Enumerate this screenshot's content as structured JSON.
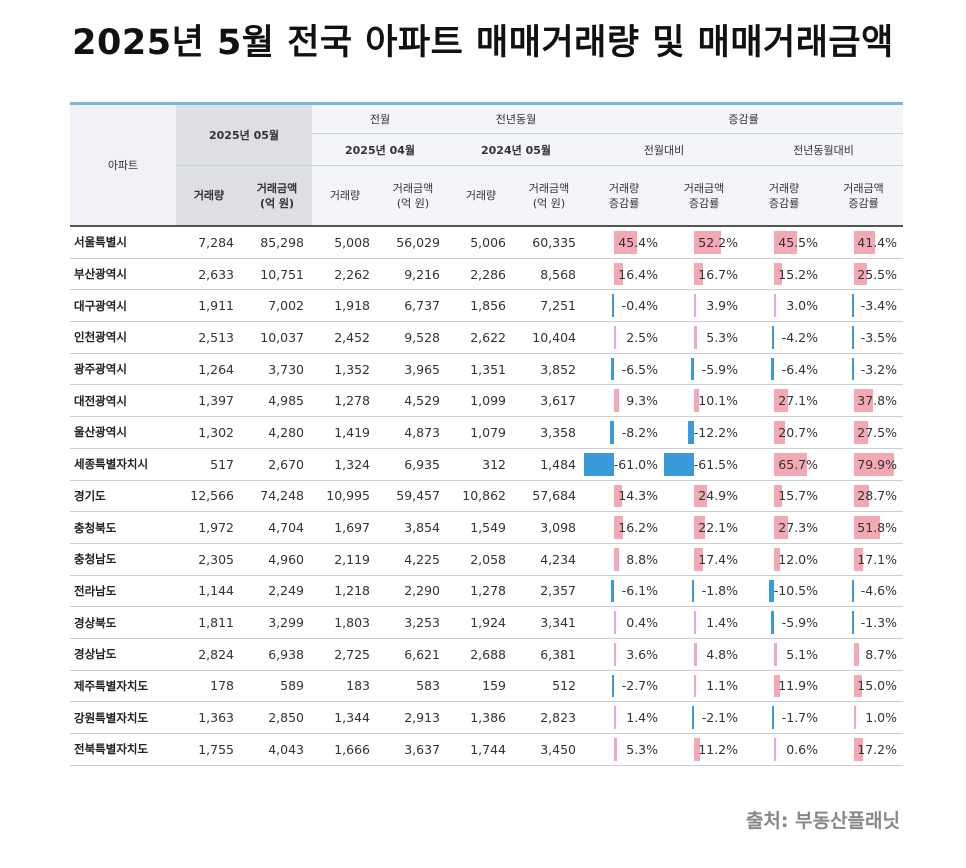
{
  "title": "2025년 5월 전국 아파트 매매거래량 및 매매거래금액",
  "header": {
    "apartment": "아파트",
    "current_month": "2025년 05월",
    "prev_month": "전월",
    "prev_year_same_month": "전년동월",
    "change_rate": "증감률",
    "prev_month_period": "2025년 04월",
    "prev_year_period": "2024년 05월",
    "vs_prev_month": "전월대비",
    "vs_prev_year": "전년동월대비",
    "volume": "거래량",
    "amount_line1": "거래금액",
    "amount_line2": "(억 원)",
    "volume_change_line1": "거래량",
    "volume_change_line2": "증감률",
    "amount_change_line1": "거래금액",
    "amount_change_line2": "증감률"
  },
  "rows": [
    {
      "region": "서울특별시",
      "vol": "7,284",
      "amt": "85,298",
      "pvol": "5,008",
      "pamt": "56,029",
      "yvol": "5,006",
      "yamt": "60,335",
      "mv": 45.4,
      "ma": 52.2,
      "yv": 45.5,
      "ya": 41.4
    },
    {
      "region": "부산광역시",
      "vol": "2,633",
      "amt": "10,751",
      "pvol": "2,262",
      "pamt": "9,216",
      "yvol": "2,286",
      "yamt": "8,568",
      "mv": 16.4,
      "ma": 16.7,
      "yv": 15.2,
      "ya": 25.5
    },
    {
      "region": "대구광역시",
      "vol": "1,911",
      "amt": "7,002",
      "pvol": "1,918",
      "pamt": "6,737",
      "yvol": "1,856",
      "yamt": "7,251",
      "mv": -0.4,
      "ma": 3.9,
      "yv": 3.0,
      "ya": -3.4
    },
    {
      "region": "인천광역시",
      "vol": "2,513",
      "amt": "10,037",
      "pvol": "2,452",
      "pamt": "9,528",
      "yvol": "2,622",
      "yamt": "10,404",
      "mv": 2.5,
      "ma": 5.3,
      "yv": -4.2,
      "ya": -3.5
    },
    {
      "region": "광주광역시",
      "vol": "1,264",
      "amt": "3,730",
      "pvol": "1,352",
      "pamt": "3,965",
      "yvol": "1,351",
      "yamt": "3,852",
      "mv": -6.5,
      "ma": -5.9,
      "yv": -6.4,
      "ya": -3.2
    },
    {
      "region": "대전광역시",
      "vol": "1,397",
      "amt": "4,985",
      "pvol": "1,278",
      "pamt": "4,529",
      "yvol": "1,099",
      "yamt": "3,617",
      "mv": 9.3,
      "ma": 10.1,
      "yv": 27.1,
      "ya": 37.8
    },
    {
      "region": "울산광역시",
      "vol": "1,302",
      "amt": "4,280",
      "pvol": "1,419",
      "pamt": "4,873",
      "yvol": "1,079",
      "yamt": "3,358",
      "mv": -8.2,
      "ma": -12.2,
      "yv": 20.7,
      "ya": 27.5
    },
    {
      "region": "세종특별자치시",
      "vol": "517",
      "amt": "2,670",
      "pvol": "1,324",
      "pamt": "6,935",
      "yvol": "312",
      "yamt": "1,484",
      "mv": -61.0,
      "ma": -61.5,
      "yv": 65.7,
      "ya": 79.9
    },
    {
      "region": "경기도",
      "vol": "12,566",
      "amt": "74,248",
      "pvol": "10,995",
      "pamt": "59,457",
      "yvol": "10,862",
      "yamt": "57,684",
      "mv": 14.3,
      "ma": 24.9,
      "yv": 15.7,
      "ya": 28.7
    },
    {
      "region": "충청북도",
      "vol": "1,972",
      "amt": "4,704",
      "pvol": "1,697",
      "pamt": "3,854",
      "yvol": "1,549",
      "yamt": "3,098",
      "mv": 16.2,
      "ma": 22.1,
      "yv": 27.3,
      "ya": 51.8
    },
    {
      "region": "충청남도",
      "vol": "2,305",
      "amt": "4,960",
      "pvol": "2,119",
      "pamt": "4,225",
      "yvol": "2,058",
      "yamt": "4,234",
      "mv": 8.8,
      "ma": 17.4,
      "yv": 12.0,
      "ya": 17.1
    },
    {
      "region": "전라남도",
      "vol": "1,144",
      "amt": "2,249",
      "pvol": "1,218",
      "pamt": "2,290",
      "yvol": "1,278",
      "yamt": "2,357",
      "mv": -6.1,
      "ma": -1.8,
      "yv": -10.5,
      "ya": -4.6
    },
    {
      "region": "경상북도",
      "vol": "1,811",
      "amt": "3,299",
      "pvol": "1,803",
      "pamt": "3,253",
      "yvol": "1,924",
      "yamt": "3,341",
      "mv": 0.4,
      "ma": 1.4,
      "yv": -5.9,
      "ya": -1.3
    },
    {
      "region": "경상남도",
      "vol": "2,824",
      "amt": "6,938",
      "pvol": "2,725",
      "pamt": "6,621",
      "yvol": "2,688",
      "yamt": "6,381",
      "mv": 3.6,
      "ma": 4.8,
      "yv": 5.1,
      "ya": 8.7
    },
    {
      "region": "제주특별자치도",
      "vol": "178",
      "amt": "589",
      "pvol": "183",
      "pamt": "583",
      "yvol": "159",
      "yamt": "512",
      "mv": -2.7,
      "ma": 1.1,
      "yv": 11.9,
      "ya": 15.0
    },
    {
      "region": "강원특별자치도",
      "vol": "1,363",
      "amt": "2,850",
      "pvol": "1,344",
      "pamt": "2,913",
      "yvol": "1,386",
      "yamt": "2,823",
      "mv": 1.4,
      "ma": -2.1,
      "yv": -1.7,
      "ya": 1.0
    },
    {
      "region": "전북특별자치도",
      "vol": "1,755",
      "amt": "4,043",
      "pvol": "1,666",
      "pamt": "3,637",
      "yvol": "1,744",
      "yamt": "3,450",
      "mv": 5.3,
      "ma": 11.2,
      "yv": 0.6,
      "ya": 17.2
    }
  ],
  "colors": {
    "increase": "#f2a9b5",
    "decrease": "#3b9ad8",
    "header_accent": "#77b7e0"
  },
  "source": "출처: 부동산플래닛"
}
